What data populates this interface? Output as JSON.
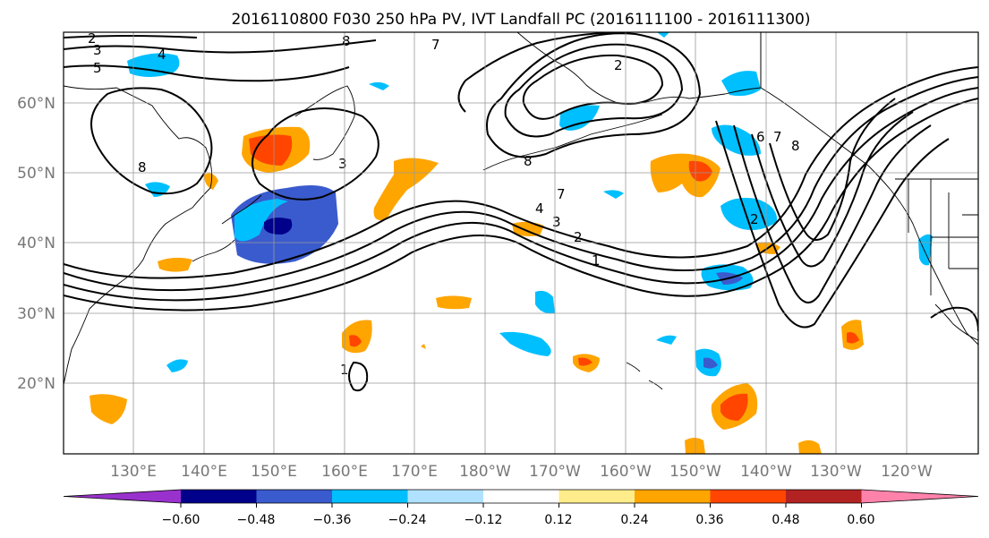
{
  "title": "2016110800 F030 250 hPa PV, IVT Landfall PC (2016111100 - 2016111300)",
  "map": {
    "lat_labels": [
      "60°N",
      "50°N",
      "40°N",
      "30°N",
      "20°N"
    ],
    "lon_labels": [
      "130°E",
      "140°E",
      "150°E",
      "160°E",
      "170°E",
      "180°W",
      "170°W",
      "160°W",
      "150°W",
      "140°W",
      "130°W",
      "120°W"
    ],
    "contour_labels": [
      "2",
      "3",
      "5",
      "4",
      "8",
      "7",
      "2",
      "8",
      "3",
      "8",
      "7",
      "4",
      "3",
      "2",
      "1",
      "1",
      "6",
      "7",
      "8",
      "2"
    ]
  },
  "colorbar": {
    "ticks": [
      "−0.60",
      "−0.48",
      "−0.36",
      "−0.24",
      "−0.12",
      "0.12",
      "0.24",
      "0.36",
      "0.48",
      "0.60"
    ],
    "colors": [
      "#9932cc",
      "#00008b",
      "#3a5bcd",
      "#00bfff",
      "#b0e2ff",
      "#ffffff",
      "#ffec8b",
      "#ffa500",
      "#ff4500",
      "#b22222",
      "#ff82ab"
    ]
  },
  "field_colors": {
    "neg_strong": "#00008b",
    "neg_mid": "#3a5bcd",
    "neg_light": "#00bfff",
    "pos_light": "#ffa500",
    "pos_mid": "#ff4500",
    "pos_strong": "#b22222"
  }
}
